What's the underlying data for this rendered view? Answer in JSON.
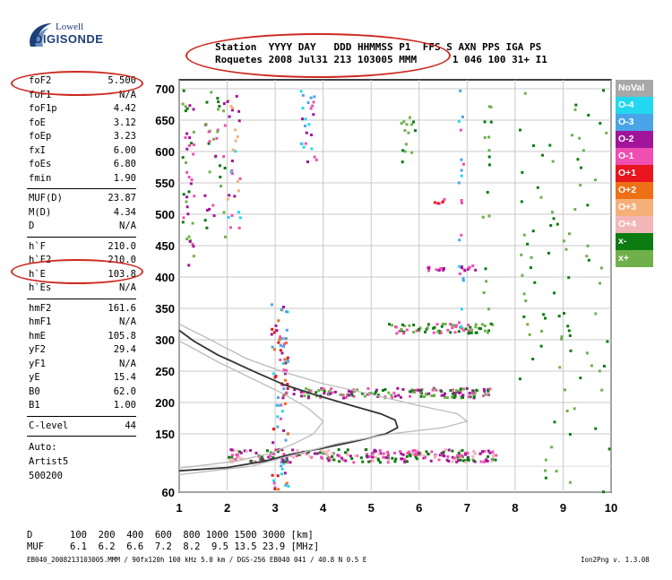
{
  "logo": {
    "top": "Lowell",
    "bottom": "DIGISONDE"
  },
  "header": {
    "columns": "Station  YYYY DAY   DDD HHMMSS P1  FFS S AXN PPS IGA PS",
    "values": "Roquetes 2008 Jul31 213 103005 MMM      1 046 100 31+ I1"
  },
  "parameters": [
    {
      "name": "foF2",
      "value": "5.500"
    },
    {
      "name": "foF1",
      "value": "N/A"
    },
    {
      "name": "foF1p",
      "value": "4.42"
    },
    {
      "name": "foE",
      "value": "3.12"
    },
    {
      "name": "foEp",
      "value": "3.23"
    },
    {
      "name": "fxI",
      "value": "6.00"
    },
    {
      "name": "foEs",
      "value": "6.80"
    },
    {
      "name": "fmin",
      "value": "1.90"
    },
    {
      "name": "MUF(D)",
      "value": "23.87"
    },
    {
      "name": "M(D)",
      "value": "4.34"
    },
    {
      "name": "D",
      "value": "N/A"
    },
    {
      "name": "h`F",
      "value": "210.0"
    },
    {
      "name": "h`F2",
      "value": "210.0"
    },
    {
      "name": "h`E",
      "value": "103.8"
    },
    {
      "name": "h`Es",
      "value": "N/A"
    },
    {
      "name": "hmF2",
      "value": "161.6"
    },
    {
      "name": "hmF1",
      "value": "N/A"
    },
    {
      "name": "hmE",
      "value": "105.8"
    },
    {
      "name": "yF2",
      "value": "29.4"
    },
    {
      "name": "yF1",
      "value": "N/A"
    },
    {
      "name": "yE",
      "value": "15.4"
    },
    {
      "name": "B0",
      "value": "62.0"
    },
    {
      "name": "B1",
      "value": "1.00"
    },
    {
      "name": "C-level",
      "value": "44"
    }
  ],
  "auto": {
    "label": "Auto:",
    "program": "Artist5",
    "code": "500200"
  },
  "legend": [
    {
      "label": "NoVal",
      "color": "#a8a8a8"
    },
    {
      "label": "O-4",
      "color": "#22d8f0"
    },
    {
      "label": "O-3",
      "color": "#4aa4e8"
    },
    {
      "label": "O-2",
      "color": "#a0159a"
    },
    {
      "label": "O-1",
      "color": "#ee4fb0"
    },
    {
      "label": "O+1",
      "color": "#e8141e"
    },
    {
      "label": "O+2",
      "color": "#ee7016"
    },
    {
      "label": "O+3",
      "color": "#f5b078"
    },
    {
      "label": "O+4",
      "color": "#f3b6b8"
    },
    {
      "label": "x-",
      "color": "#0c7c12"
    },
    {
      "label": "x+",
      "color": "#6fb04a"
    }
  ],
  "footer": {
    "d_label": "D",
    "d_values": "100  200  400  600  800 1000 1500 3000 [km]",
    "muf_label": "MUF",
    "muf_values": "6.1  6.2  6.6  7.2  8.2  9.5 13.5 23.9 [MHz]",
    "file_line": "EB040_2008213103005.MMM / 90fx120h 100 kHz 5.0 km / DGS-256 EB040 041 / 40.8 N 0.5 E",
    "version": "Ion2Png v. 1.3.08"
  },
  "chart_data": {
    "type": "scatter",
    "xlim": [
      1,
      10
    ],
    "ylim": [
      60,
      700
    ],
    "x_ticks": [
      1,
      2,
      3,
      4,
      5,
      6,
      7,
      8,
      9,
      10
    ],
    "y_ticks": [
      60,
      150,
      200,
      250,
      300,
      350,
      400,
      450,
      500,
      550,
      600,
      650,
      700
    ],
    "grid": true,
    "curves": [
      {
        "color": "#333333",
        "points": [
          [
            1.0,
            93
          ],
          [
            2.0,
            98
          ],
          [
            2.8,
            108
          ],
          [
            3.3,
            118
          ],
          [
            4.0,
            128
          ],
          [
            4.7,
            139
          ],
          [
            5.3,
            150
          ],
          [
            5.55,
            160
          ],
          [
            5.5,
            172
          ],
          [
            5.2,
            182
          ],
          [
            4.6,
            195
          ],
          [
            3.8,
            213
          ],
          [
            3.2,
            228
          ],
          [
            2.6,
            248
          ],
          [
            1.8,
            276
          ],
          [
            1.3,
            298
          ],
          [
            1.0,
            315
          ]
        ]
      },
      {
        "color": "#bbbbbb",
        "points": [
          [
            1.0,
            87
          ],
          [
            2.5,
            100
          ],
          [
            3.4,
            118
          ],
          [
            4.3,
            135
          ],
          [
            5.4,
            150
          ],
          [
            6.5,
            160
          ],
          [
            7.0,
            170
          ],
          [
            6.8,
            182
          ],
          [
            6.0,
            195
          ],
          [
            5.0,
            213
          ],
          [
            4.0,
            230
          ],
          [
            3.2,
            248
          ],
          [
            2.4,
            270
          ],
          [
            1.6,
            302
          ],
          [
            1.0,
            325
          ]
        ]
      },
      {
        "color": "#bbbbbb",
        "points": [
          [
            1.0,
            97
          ],
          [
            2.2,
            108
          ],
          [
            2.9,
            120
          ],
          [
            3.4,
            135
          ],
          [
            3.8,
            150
          ],
          [
            4.0,
            170
          ],
          [
            3.7,
            190
          ],
          [
            3.2,
            213
          ],
          [
            2.6,
            235
          ],
          [
            1.8,
            265
          ],
          [
            1.2,
            290
          ],
          [
            1.0,
            298
          ]
        ]
      }
    ],
    "clusters": [
      {
        "x": [
          1.05,
          1.3
        ],
        "y": [
          420,
          700
        ],
        "colors": [
          "#0c7c12",
          "#6fb04a",
          "#ee4fb0",
          "#a0159a"
        ],
        "density": 40
      },
      {
        "x": [
          1.5,
          1.95
        ],
        "y": [
          460,
          700
        ],
        "colors": [
          "#0c7c12",
          "#ee4fb0",
          "#a0159a",
          "#6fb04a"
        ],
        "density": 36
      },
      {
        "x": [
          1.95,
          2.25
        ],
        "y": [
          480,
          700
        ],
        "colors": [
          "#ee4fb0",
          "#22d8f0",
          "#f5b078",
          "#a0159a"
        ],
        "density": 30
      },
      {
        "x": [
          2.9,
          3.25
        ],
        "y": [
          60,
          360
        ],
        "colors": [
          "#22d8f0",
          "#4aa4e8",
          "#ee4fb0",
          "#e8141e",
          "#ee7016",
          "#a0159a"
        ],
        "density": 90
      },
      {
        "x": [
          3.5,
          3.85
        ],
        "y": [
          580,
          700
        ],
        "colors": [
          "#ee4fb0",
          "#22d8f0",
          "#a0159a",
          "#4aa4e8"
        ],
        "density": 24
      },
      {
        "x": [
          2.0,
          7.6
        ],
        "y": [
          108,
          128
        ],
        "colors": [
          "#ee4fb0",
          "#0c7c12",
          "#f3b6b8",
          "#a0159a"
        ],
        "density": 260
      },
      {
        "x": [
          3.2,
          7.5
        ],
        "y": [
          209,
          225
        ],
        "colors": [
          "#0c7c12",
          "#ee4fb0",
          "#6fb04a",
          "#a0159a"
        ],
        "density": 150
      },
      {
        "x": [
          5.3,
          7.6
        ],
        "y": [
          312,
          328
        ],
        "colors": [
          "#0c7c12",
          "#ee4fb0",
          "#6fb04a"
        ],
        "density": 70
      },
      {
        "x": [
          6.1,
          6.5
        ],
        "y": [
          412,
          420
        ],
        "colors": [
          "#ee4fb0",
          "#a0159a"
        ],
        "density": 12
      },
      {
        "x": [
          6.8,
          7.2
        ],
        "y": [
          412,
          420
        ],
        "colors": [
          "#ee4fb0",
          "#a0159a"
        ],
        "density": 10
      },
      {
        "x": [
          6.3,
          6.6
        ],
        "y": [
          518,
          528
        ],
        "colors": [
          "#ee4fb0",
          "#e8141e"
        ],
        "density": 6
      },
      {
        "x": [
          5.6,
          5.9
        ],
        "y": [
          580,
          700
        ],
        "colors": [
          "#0c7c12",
          "#6fb04a"
        ],
        "density": 14
      },
      {
        "x": [
          6.8,
          6.9
        ],
        "y": [
          320,
          700
        ],
        "colors": [
          "#4aa4e8",
          "#ee4fb0",
          "#22d8f0"
        ],
        "density": 20
      },
      {
        "x": [
          7.3,
          7.5
        ],
        "y": [
          330,
          700
        ],
        "colors": [
          "#0c7c12",
          "#6fb04a"
        ],
        "density": 16
      },
      {
        "x": [
          8.0,
          9.95
        ],
        "y": [
          60,
          700
        ],
        "colors": [
          "#0c7c12",
          "#6fb04a"
        ],
        "density": 90
      }
    ]
  }
}
